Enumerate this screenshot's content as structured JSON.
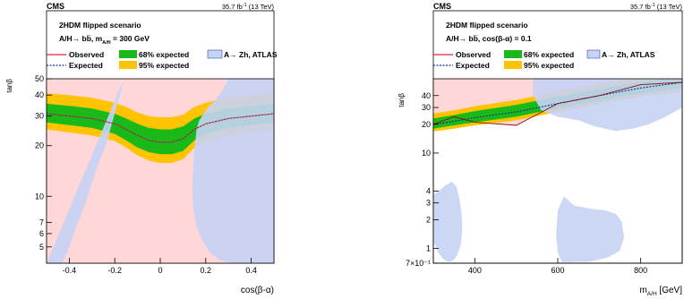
{
  "chart_data": [
    {
      "type": "area",
      "experiment": "CMS",
      "lumi": "35.7 fb",
      "lumi_exp": "-1",
      "lumi_energy": " (13 TeV)",
      "legend": {
        "scenario": "2HDM flipped scenario",
        "process": "A/H→ bb̅, m",
        "process_sub": "A/H",
        "process_tail": " = 300 GeV",
        "observed": "Observed",
        "expected": "Expected",
        "band68": "68% expected",
        "band95": "95% expected",
        "atlas": "A→ Zh, ATLAS",
        "placement": "top"
      },
      "xlabel": "cos(β-α)",
      "ylabel": "tanβ",
      "xlim": [
        -0.5,
        0.5
      ],
      "ylim": [
        4,
        50
      ],
      "ylog": true,
      "xticks": [
        "-0.4",
        "-0.2",
        "0",
        "0.2",
        "0.4"
      ],
      "xtick_values": [
        -0.4,
        -0.2,
        0,
        0.2,
        0.4
      ],
      "yticks": [
        "5",
        "6",
        "7",
        "10",
        "20",
        "30",
        "40",
        "50"
      ],
      "ytick_values": [
        5,
        6,
        7,
        10,
        20,
        30,
        40,
        50
      ],
      "colors": {
        "observed": "#e5262a",
        "expected": "#1f2d8a",
        "band68": "#19b919",
        "band95": "#ffc300",
        "excluded": "#ffd7d7",
        "atlas": "#c6d3f5"
      },
      "x": [
        -0.5,
        -0.4,
        -0.3,
        -0.2,
        -0.15,
        -0.1,
        -0.05,
        0,
        0.05,
        0.1,
        0.15,
        0.2,
        0.3,
        0.4,
        0.5
      ],
      "expected": [
        31,
        30,
        29,
        27,
        25,
        23,
        21.5,
        21,
        21,
        22,
        25,
        27,
        29,
        30,
        31
      ],
      "observed": [
        31,
        30,
        29,
        27,
        25,
        23,
        21.5,
        21,
        21,
        22,
        25,
        27,
        29,
        30,
        31
      ],
      "band68_low": [
        27.5,
        26.5,
        25.5,
        23.5,
        21.5,
        19.5,
        18.3,
        17.8,
        17.8,
        18.6,
        21.5,
        23.5,
        25.5,
        26.5,
        27.5
      ],
      "band68_high": [
        35.5,
        34.5,
        33.3,
        31,
        29,
        27,
        25.5,
        25,
        25,
        26,
        29,
        31,
        33.3,
        34.5,
        35.5
      ],
      "band95_low": [
        25,
        24,
        23,
        21.3,
        19.5,
        17.5,
        16.3,
        15.8,
        15.8,
        16.6,
        19.5,
        21.3,
        23,
        24,
        25
      ],
      "band95_high": [
        41,
        40,
        38.5,
        36,
        34,
        31.5,
        30,
        29.5,
        29.5,
        30.5,
        34,
        36,
        38.5,
        40,
        41
      ],
      "atlas_left": {
        "x": [
          -0.5,
          -0.43,
          -0.4,
          -0.37,
          -0.33,
          -0.3,
          -0.28,
          -0.26,
          -0.24,
          -0.23,
          -0.22,
          -0.21,
          -0.2,
          -0.19,
          -0.18,
          -0.17,
          -0.165,
          -0.16
        ],
        "y": [
          4,
          4,
          5,
          6.5,
          9,
          12,
          14.5,
          17,
          20,
          22,
          25,
          28,
          31,
          35,
          39,
          43,
          47,
          50
        ]
      },
      "atlas_right": {
        "x": [
          0.5,
          0.5,
          0.3,
          0.27,
          0.24,
          0.21,
          0.19,
          0.17,
          0.16,
          0.155,
          0.15,
          0.145,
          0.14,
          0.145,
          0.16,
          0.19,
          0.22,
          0.26,
          0.3,
          0.33
        ],
        "y": [
          4,
          50,
          50,
          42,
          37,
          34,
          31,
          28,
          25,
          22,
          19,
          15,
          11,
          8.5,
          6.5,
          5.3,
          4.6,
          4.2,
          4.05,
          4
        ]
      }
    },
    {
      "type": "area",
      "experiment": "CMS",
      "lumi": "35.7 fb",
      "lumi_exp": "-1",
      "lumi_energy": " (13 TeV)",
      "legend": {
        "scenario": "2HDM flipped scenario",
        "process": "A/H→ bb̅, cos(β-α) = 0.1",
        "observed": "Observed",
        "expected": "Expected",
        "band68": "68% expected",
        "band95": "95% expected",
        "atlas": "A→ Zh, ATLAS",
        "placement": "top"
      },
      "xlabel": "m",
      "xlabel_sub": "A/H",
      "xlabel_unit": " [GeV]",
      "ylabel": "tanβ",
      "xlim": [
        300,
        900
      ],
      "ylim": [
        0.7,
        60
      ],
      "ylog": true,
      "xticks": [
        "400",
        "600",
        "800"
      ],
      "xtick_values": [
        400,
        600,
        800
      ],
      "yticks": [
        "7×10⁻¹",
        "1",
        "2",
        "3",
        "4",
        "10",
        "20",
        "30",
        "40"
      ],
      "ytick_values": [
        0.7,
        1,
        2,
        3,
        4,
        10,
        20,
        30,
        40
      ],
      "colors": {
        "observed": "#e5262a",
        "expected": "#1f2d8a",
        "band68": "#19b919",
        "band95": "#ffc300",
        "excluded": "#ffd7d7",
        "atlas": "#c6d3f5"
      },
      "x": [
        300,
        350,
        400,
        500,
        600,
        700,
        800,
        900
      ],
      "expected": [
        20,
        21.5,
        23.5,
        27,
        33,
        40,
        48,
        55
      ],
      "observed": [
        20,
        24,
        21,
        19.5,
        33,
        40,
        52,
        55
      ],
      "band68_low": [
        18,
        19.5,
        21,
        24,
        29.5,
        35.5,
        42.5,
        48
      ],
      "band68_high": [
        23,
        25,
        27.5,
        32,
        39,
        47,
        56,
        62
      ],
      "band95_low": [
        16.8,
        18,
        19.5,
        22,
        27,
        32.5,
        39,
        44
      ],
      "band95_high": [
        26,
        28,
        31,
        36,
        44,
        53,
        63,
        70
      ],
      "atlas_regions": [
        {
          "x": [
            540,
            600,
            700,
            800,
            900,
            900,
            860,
            820,
            780,
            740,
            690,
            650,
            600,
            560,
            540
          ],
          "y": [
            60,
            60,
            60,
            60,
            60,
            30,
            24,
            20,
            18,
            17,
            19,
            22,
            24,
            28,
            40
          ]
        },
        {
          "x": [
            300,
            330,
            345,
            355,
            362,
            368,
            370,
            366,
            358,
            348,
            338,
            326,
            312,
            300
          ],
          "y": [
            3.6,
            4.6,
            5,
            4.5,
            3.5,
            2.4,
            1.6,
            1.1,
            0.85,
            0.75,
            0.72,
            0.76,
            0.9,
            1.2
          ]
        },
        {
          "x": [
            610,
            640,
            680,
            720,
            750,
            760,
            754,
            740,
            715,
            680,
            640,
            615,
            600,
            596,
            600
          ],
          "y": [
            0.72,
            0.72,
            0.73,
            0.8,
            0.95,
            1.3,
            1.9,
            2.3,
            2.5,
            2.6,
            2.8,
            3.5,
            2.5,
            1.4,
            0.9
          ]
        }
      ]
    }
  ]
}
